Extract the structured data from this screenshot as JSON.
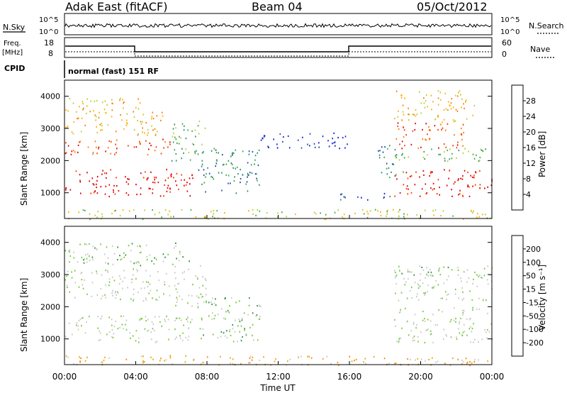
{
  "header": {
    "station": "Adak East (fitACF)",
    "beam": "Beam 04",
    "date": "05/Oct/2012"
  },
  "top_panels": {
    "nsky_label": "N.Sky",
    "nsearch_label": "N.Search",
    "noise_ticks_left": [
      "10^5",
      "10^0"
    ],
    "noise_ticks_right": [
      "10^5",
      "10^0"
    ],
    "freq_label_1": "Freq.",
    "freq_label_2": "[MHz]",
    "freq_ticks": [
      "18",
      "8"
    ],
    "nave_label": "Nave",
    "nave_ticks": [
      "60",
      "0"
    ],
    "cpid_label": "CPID",
    "cpid_text": "normal (fast) 151 RF"
  },
  "colors": {
    "power_scale": [
      "#1020e0",
      "#1f4fa8",
      "#2f8f6a",
      "#3faa45",
      "#b8d030",
      "#ffb000",
      "#ff7a00",
      "#ff3a00",
      "#e00000"
    ],
    "velocity_scale": [
      "#1830b0",
      "#2f7fa0",
      "#2f9040",
      "#70cc30",
      "#c8c8c8",
      "#c8c8c8",
      "#f0a000",
      "#ff8000",
      "#ff4000",
      "#e00000"
    ]
  },
  "chart_data": [
    {
      "type": "heatmap",
      "name": "power",
      "ylabel": "Slant Range [km]",
      "yticks": [
        1000,
        2000,
        3000,
        4000
      ],
      "ylim": [
        200,
        4500
      ],
      "xlim": [
        0,
        24
      ],
      "colorbar_label": "Power [dB]",
      "colorbar_ticks": [
        "4",
        "8",
        "12",
        "16",
        "20",
        "24",
        "28"
      ],
      "regions": [
        {
          "t0": 0,
          "t1": 7.2,
          "r0": 900,
          "r1": 1750,
          "level": 8
        },
        {
          "t0": 0,
          "t1": 6,
          "r0": 2200,
          "r1": 2700,
          "level": 7
        },
        {
          "t0": 0,
          "t1": 5.5,
          "r0": 2800,
          "r1": 3600,
          "level": 5
        },
        {
          "t0": 0,
          "t1": 4.5,
          "r0": 3600,
          "r1": 4000,
          "level": 5
        },
        {
          "t0": 6,
          "t1": 8,
          "r0": 2000,
          "r1": 3300,
          "level": 3
        },
        {
          "t0": 7.5,
          "t1": 11,
          "r0": 1000,
          "r1": 2400,
          "level": 2
        },
        {
          "t0": 11,
          "t1": 16,
          "r0": 2400,
          "r1": 2900,
          "level": 0
        },
        {
          "t0": 15,
          "t1": 18.5,
          "r0": 800,
          "r1": 1000,
          "level": 1
        },
        {
          "t0": 17.5,
          "t1": 19,
          "r0": 1500,
          "r1": 2500,
          "level": 2
        },
        {
          "t0": 18.5,
          "t1": 24,
          "r0": 900,
          "r1": 1750,
          "level": 8
        },
        {
          "t0": 18.5,
          "t1": 22.5,
          "r0": 2400,
          "r1": 3200,
          "level": 7
        },
        {
          "t0": 18.5,
          "t1": 24,
          "r0": 2000,
          "r1": 2400,
          "level": 3
        },
        {
          "t0": 18.5,
          "t1": 23,
          "r0": 3200,
          "r1": 4200,
          "level": 5
        },
        {
          "t0": 0,
          "t1": 24,
          "r0": 200,
          "r1": 500,
          "level": 4
        }
      ]
    },
    {
      "type": "heatmap",
      "name": "velocity",
      "ylabel": "Slant Range [km]",
      "xlabel": "Time UT",
      "yticks": [
        1000,
        2000,
        3000,
        4000
      ],
      "xticks": [
        "00:00",
        "04:00",
        "08:00",
        "12:00",
        "16:00",
        "20:00",
        "00:00"
      ],
      "ylim": [
        200,
        4500
      ],
      "xlim": [
        0,
        24
      ],
      "colorbar_label": "Velocity [m s⁻¹]",
      "colorbar_ticks": [
        "-200",
        "-100",
        "-50",
        "-15",
        "15",
        "50",
        "100",
        "200"
      ],
      "regions": [
        {
          "t0": 0,
          "t1": 7.2,
          "r0": 900,
          "r1": 1750,
          "level": 4
        },
        {
          "t0": 0,
          "t1": 6,
          "r0": 2200,
          "r1": 3200,
          "level": 4
        },
        {
          "t0": 0,
          "t1": 7,
          "r0": 3300,
          "r1": 4000,
          "level": 3
        },
        {
          "t0": 6,
          "t1": 8,
          "r0": 2000,
          "r1": 3300,
          "level": 4
        },
        {
          "t0": 7.5,
          "t1": 11,
          "r0": 900,
          "r1": 2300,
          "level": 3
        },
        {
          "t0": 18.5,
          "t1": 24,
          "r0": 900,
          "r1": 2000,
          "level": 4
        },
        {
          "t0": 18.5,
          "t1": 24,
          "r0": 2200,
          "r1": 3300,
          "level": 4
        },
        {
          "t0": 18.5,
          "t1": 22,
          "r0": 3000,
          "r1": 3300,
          "level": 3
        },
        {
          "t0": 0,
          "t1": 24,
          "r0": 200,
          "r1": 500,
          "level": 6
        }
      ]
    }
  ]
}
